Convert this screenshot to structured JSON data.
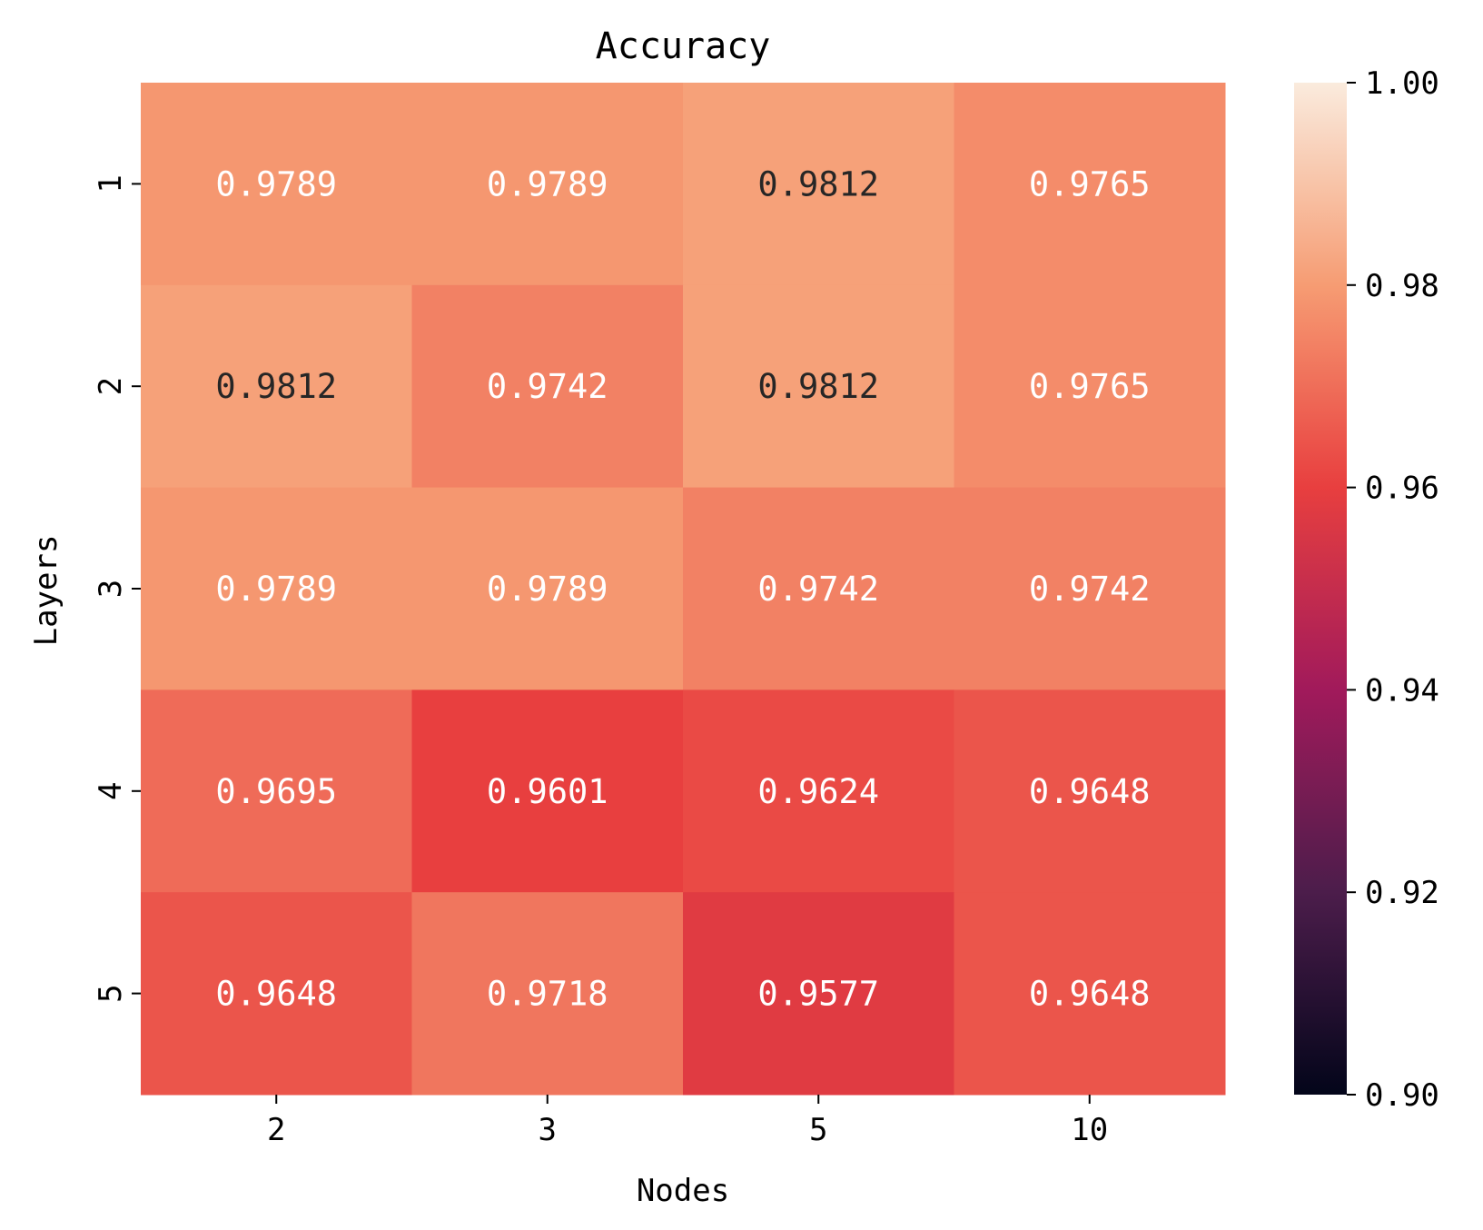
{
  "chart_data": {
    "type": "heatmap",
    "title": "Accuracy",
    "xlabel": "Nodes",
    "ylabel": "Layers",
    "x_categories": [
      "2",
      "3",
      "5",
      "10"
    ],
    "y_categories": [
      "1",
      "2",
      "3",
      "4",
      "5"
    ],
    "values": [
      [
        0.9789,
        0.9789,
        0.9812,
        0.9765
      ],
      [
        0.9812,
        0.9742,
        0.9812,
        0.9765
      ],
      [
        0.9789,
        0.9789,
        0.9742,
        0.9742
      ],
      [
        0.9695,
        0.9601,
        0.9624,
        0.9648
      ],
      [
        0.9648,
        0.9718,
        0.9577,
        0.9648
      ]
    ],
    "value_labels": [
      [
        "0.9789",
        "0.9789",
        "0.9812",
        "0.9765"
      ],
      [
        "0.9812",
        "0.9742",
        "0.9812",
        "0.9765"
      ],
      [
        "0.9789",
        "0.9789",
        "0.9742",
        "0.9742"
      ],
      [
        "0.9695",
        "0.9601",
        "0.9624",
        "0.9648"
      ],
      [
        "0.9648",
        "0.9718",
        "0.9577",
        "0.9648"
      ]
    ],
    "colorbar": {
      "min": 0.9,
      "max": 1.0,
      "ticks": [
        1.0,
        0.98,
        0.96,
        0.94,
        0.92,
        0.9
      ],
      "tick_labels": [
        "1.00",
        "0.98",
        "0.96",
        "0.94",
        "0.92",
        "0.90"
      ],
      "colormap": "rocket"
    },
    "colors": {
      "cmap_stops": [
        "#03051a",
        "#4c1d4b",
        "#a11a5b",
        "#e83f3f",
        "#f69c73",
        "#faebdd"
      ],
      "text_dark": "#262626",
      "text_light": "#ffffff",
      "axis": "#000000"
    }
  }
}
